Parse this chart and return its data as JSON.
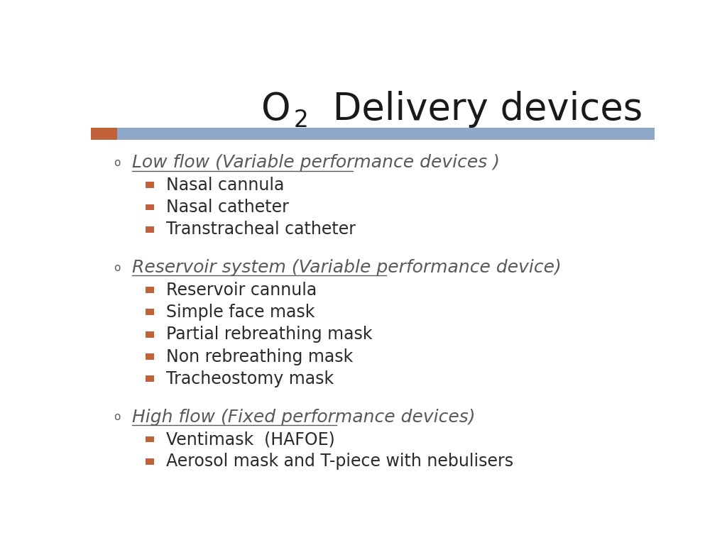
{
  "background_color": "#ffffff",
  "header_bar_color": "#8fa8c8",
  "header_accent_color": "#c0613a",
  "title_fontsize": 38,
  "title_color": "#1a1a1a",
  "bullet_color_sub": "#c0613a",
  "underline_color": "#5a5a5a",
  "text_color_main": "#595959",
  "text_color_sub": "#2a2a2a",
  "heading_fontsize": 18,
  "item_fontsize": 17,
  "sections": [
    {
      "heading": "Low flow (Variable performance devices )",
      "items": [
        "Nasal cannula",
        "Nasal catheter",
        "Transtracheal catheter"
      ]
    },
    {
      "heading": "Reservoir system (Variable performance device)",
      "items": [
        "Reservoir cannula",
        "Simple face mask",
        "Partial rebreathing mask",
        "Non rebreathing mask",
        "Tracheostomy mask"
      ]
    },
    {
      "heading": "High flow (Fixed performance devices)",
      "items": [
        "Ventimask  (HAFOE)",
        "Aerosol mask and T-piece with nebulisers"
      ]
    }
  ]
}
